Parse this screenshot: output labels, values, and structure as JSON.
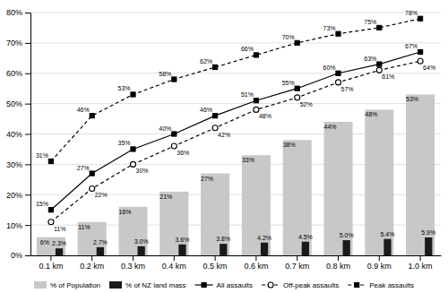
{
  "chart_data": {
    "type": "bar",
    "categories": [
      "0.1 km",
      "0.2 km",
      "0.3 km",
      "0.4 km",
      "0.5 km",
      "0.6 km",
      "0.7 km",
      "0.8 km",
      "0.9 km",
      "1.0 km"
    ],
    "series": [
      {
        "name": "% of Population",
        "type": "bar",
        "color": "#c8c8c8",
        "values": [
          6,
          11,
          16,
          21,
          27,
          33,
          38,
          44,
          48,
          53
        ],
        "value_labels": [
          "6%",
          "11%",
          "16%",
          "21%",
          "27%",
          "33%",
          "38%",
          "44%",
          "48%",
          "53%"
        ]
      },
      {
        "name": "% of NZ land mass",
        "type": "bar",
        "color": "#1a1a1a",
        "values": [
          2.3,
          2.7,
          3.0,
          3.6,
          3.8,
          4.2,
          4.5,
          5.0,
          5.4,
          5.9
        ],
        "value_labels": [
          "2.3%",
          "2.7%",
          "3.0%",
          "3.6%",
          "3.8%",
          "4.2%",
          "4.5%",
          "5.0%",
          "5.4%",
          "5.9%"
        ]
      },
      {
        "name": "All assaults",
        "type": "line",
        "color": "#000000",
        "marker": "square",
        "line_style": "solid",
        "values": [
          15,
          27,
          35,
          40,
          46,
          51,
          55,
          60,
          63,
          67
        ],
        "value_labels": [
          "15%",
          "27%",
          "35%",
          "40%",
          "46%",
          "51%",
          "55%",
          "60%",
          "63%",
          "67%"
        ]
      },
      {
        "name": "Off-peak assaults",
        "type": "line",
        "color": "#000000",
        "marker": "circle",
        "line_style": "dashed",
        "values": [
          11,
          22,
          30,
          36,
          42,
          48,
          52,
          57,
          61,
          64
        ],
        "value_labels": [
          "11%",
          "22%",
          "30%",
          "36%",
          "42%",
          "48%",
          "52%",
          "57%",
          "61%",
          "64%"
        ]
      },
      {
        "name": "Peak assaults",
        "type": "line",
        "color": "#000000",
        "marker": "square",
        "line_style": "dashed",
        "values": [
          31,
          46,
          53,
          58,
          62,
          66,
          70,
          73,
          75,
          78
        ],
        "value_labels": [
          "31%",
          "46%",
          "53%",
          "58%",
          "62%",
          "66%",
          "70%",
          "73%",
          "75%",
          "78%"
        ]
      }
    ],
    "ylim": [
      0,
      80
    ],
    "yticks": [
      {
        "value": 0,
        "label": "0%"
      },
      {
        "value": 10,
        "label": "10%"
      },
      {
        "value": 20,
        "label": "20%"
      },
      {
        "value": 30,
        "label": "30%"
      },
      {
        "value": 40,
        "label": "40%"
      },
      {
        "value": 50,
        "label": "50%"
      },
      {
        "value": 60,
        "label": "60%"
      },
      {
        "value": 70,
        "label": "70%"
      },
      {
        "value": 80,
        "label": "80%"
      }
    ],
    "grid": true,
    "legend": "bottom",
    "data_labels": true
  }
}
